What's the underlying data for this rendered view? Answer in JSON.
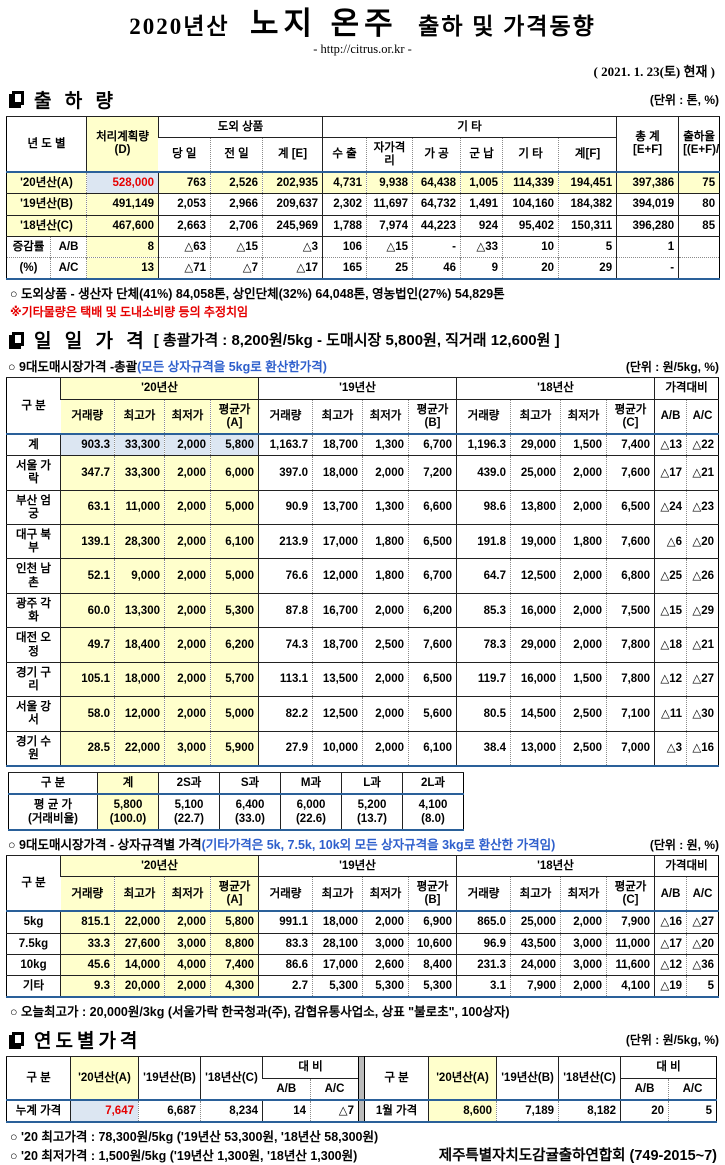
{
  "header": {
    "year_label": "2020년산",
    "title": "노지 온주",
    "subtitle": "출하 및 가격동향",
    "url": "- http://citrus.or.kr -",
    "date": "( 2021. 1. 23(토) 현재 )"
  },
  "shipment": {
    "title": "출 하 량",
    "unit": "(단위 : 톤, %)",
    "h": {
      "year": "년 도 별",
      "plan": "처리계획량\n(D)",
      "dowoe": "도외 상품",
      "day": "당 일",
      "prev": "전 일",
      "sumE": "계 [E]",
      "etc_group": "기            타",
      "exp": "수 출",
      "selfq": "자가격리",
      "proc": "가 공",
      "mil": "군 납",
      "etc": "기 타",
      "sumF": "계[F]",
      "total": "총  계\n[E+F]",
      "rate": "출하율\n[(E+F)/D]"
    },
    "rows": [
      {
        "cls": "cur",
        "c": [
          "'20년산(A)",
          "528,000",
          "763",
          "2,526",
          "202,935",
          "4,731",
          "9,938",
          "64,438",
          "1,005",
          "114,339",
          "194,451",
          "397,386",
          "75"
        ]
      },
      {
        "c": [
          "'19년산(B)",
          "491,149",
          "2,053",
          "2,966",
          "209,637",
          "2,302",
          "11,697",
          "64,732",
          "1,491",
          "104,160",
          "184,382",
          "394,019",
          "80"
        ]
      },
      {
        "c": [
          "'18년산(C)",
          "467,600",
          "2,663",
          "2,706",
          "245,969",
          "1,788",
          "7,974",
          "44,223",
          "924",
          "95,402",
          "150,311",
          "396,280",
          "85"
        ]
      }
    ],
    "chg_rows": [
      {
        "c": [
          "증감률",
          "A/B",
          "8",
          "△63",
          "△15",
          "△3",
          "106",
          "△15",
          "-",
          "△33",
          "10",
          "5",
          "1",
          ""
        ]
      },
      {
        "cls": "dot",
        "c": [
          "(%)",
          "A/C",
          "13",
          "△71",
          "△7",
          "△17",
          "165",
          "25",
          "46",
          "9",
          "20",
          "29",
          "-",
          ""
        ]
      }
    ],
    "note1": "○ 도외상품 - 생산자 단체(41%)  84,058톤,   상인단체(32%)  64,048톤,   영농법인(27%)  54,829톤",
    "note2": "※기타물량은 택배 및 도내소비량 등의 추정치임"
  },
  "price_header": {
    "gubun": "구   분",
    "y20": "'20년산",
    "y19": "'19년산",
    "y18": "'18년산",
    "cmp": "가격대비",
    "vol": "거래량",
    "high": "최고가",
    "low": "최저가",
    "avgA": "평균가(A]",
    "avgB": "평균가(B]",
    "avgC": "평균가(C]",
    "ab": "A/B",
    "ac": "A/C"
  },
  "daily": {
    "title": "일 일 가 격",
    "title_detail": "[ 총괄가격 : 8,200원/5kg  -  도매시장  5,800원,  직거래  12,600원 ]",
    "sub1": "○ 9대도매시장가격 -총괄",
    "sub1_paren": "(모든 상자규격을 5kg로 환산한가격)",
    "unit1": "(단위 : 원/5kg, %)",
    "rows": [
      {
        "cls": "tot",
        "c": [
          "계",
          "903.3",
          "33,300",
          "2,000",
          "5,800",
          "1,163.7",
          "18,700",
          "1,300",
          "6,700",
          "1,196.3",
          "29,000",
          "1,500",
          "7,400",
          "△13",
          "△22"
        ]
      },
      {
        "c": [
          "서울 가락",
          "347.7",
          "33,300",
          "2,000",
          "6,000",
          "397.0",
          "18,000",
          "2,000",
          "7,200",
          "439.0",
          "25,000",
          "2,000",
          "7,600",
          "△17",
          "△21"
        ]
      },
      {
        "c": [
          "부산 엄궁",
          "63.1",
          "11,000",
          "2,000",
          "5,000",
          "90.9",
          "13,700",
          "1,300",
          "6,600",
          "98.6",
          "13,800",
          "2,000",
          "6,500",
          "△24",
          "△23"
        ]
      },
      {
        "c": [
          "대구 북부",
          "139.1",
          "28,300",
          "2,000",
          "6,100",
          "213.9",
          "17,000",
          "1,800",
          "6,500",
          "191.8",
          "19,000",
          "1,800",
          "7,600",
          "△6",
          "△20"
        ]
      },
      {
        "c": [
          "인천 남촌",
          "52.1",
          "9,000",
          "2,000",
          "5,000",
          "76.6",
          "12,000",
          "1,800",
          "6,700",
          "64.7",
          "12,500",
          "2,000",
          "6,800",
          "△25",
          "△26"
        ]
      },
      {
        "c": [
          "광주 각화",
          "60.0",
          "13,300",
          "2,000",
          "5,300",
          "87.8",
          "16,700",
          "2,000",
          "6,200",
          "85.3",
          "16,000",
          "2,000",
          "7,500",
          "△15",
          "△29"
        ]
      },
      {
        "c": [
          "대전 오정",
          "49.7",
          "18,400",
          "2,000",
          "6,200",
          "74.3",
          "18,700",
          "2,500",
          "7,600",
          "78.3",
          "29,000",
          "2,000",
          "7,800",
          "△18",
          "△21"
        ]
      },
      {
        "c": [
          "경기 구리",
          "105.1",
          "18,000",
          "2,000",
          "5,700",
          "113.1",
          "13,500",
          "2,000",
          "6,500",
          "119.7",
          "16,000",
          "1,500",
          "7,800",
          "△12",
          "△27"
        ]
      },
      {
        "c": [
          "서울 강서",
          "58.0",
          "12,000",
          "2,000",
          "5,000",
          "82.2",
          "12,500",
          "2,000",
          "5,600",
          "80.5",
          "14,500",
          "2,500",
          "7,100",
          "△11",
          "△30"
        ]
      },
      {
        "c": [
          "경기 수원",
          "28.5",
          "22,000",
          "3,000",
          "5,900",
          "27.9",
          "10,000",
          "2,000",
          "6,100",
          "38.4",
          "13,000",
          "2,500",
          "7,000",
          "△3",
          "△16"
        ]
      }
    ],
    "size_table": {
      "h": [
        "구    분",
        "계",
        "2S과",
        "S과",
        "M과",
        "L과",
        "2L과"
      ],
      "rows": [
        {
          "c": [
            "평 균 가\n(거래비율)",
            "5,800\n(100.0)",
            "5,100\n(22.7)",
            "6,400\n(33.0)",
            "6,000\n(22.6)",
            "5,200\n(13.7)",
            "4,100\n(8.0)"
          ]
        }
      ]
    },
    "sub2": "○ 9대도매시장가격 - 상자규격별 가격",
    "sub2_paren": "(기타가격은 5k, 7.5k, 10k외 모든 상자규격을 3kg로 환산한 가격임)",
    "unit2": "(단위 : 원, %)",
    "box_rows": [
      {
        "c": [
          "5kg",
          "815.1",
          "22,000",
          "2,000",
          "5,800",
          "991.1",
          "18,000",
          "2,000",
          "6,900",
          "865.0",
          "25,000",
          "2,000",
          "7,900",
          "△16",
          "△27"
        ]
      },
      {
        "c": [
          "7.5kg",
          "33.3",
          "27,600",
          "3,000",
          "8,800",
          "83.3",
          "28,100",
          "3,000",
          "10,600",
          "96.9",
          "43,500",
          "3,000",
          "11,000",
          "△17",
          "△20"
        ]
      },
      {
        "c": [
          "10kg",
          "45.6",
          "14,000",
          "4,000",
          "7,400",
          "86.6",
          "17,000",
          "2,600",
          "8,400",
          "231.3",
          "24,000",
          "3,000",
          "11,600",
          "△12",
          "△36"
        ]
      },
      {
        "c": [
          "기타",
          "9.3",
          "20,000",
          "2,000",
          "4,300",
          "2.7",
          "5,300",
          "5,300",
          "5,300",
          "3.1",
          "7,900",
          "2,000",
          "4,100",
          "△19",
          "5"
        ]
      }
    ],
    "box_note": "○ 오늘최고가 :  20,000원/3kg (서울가락  한국청과(주),  감협유통사업소,  상표 \"불로초\",  100상자)"
  },
  "yearly": {
    "title": "연도별가격",
    "unit": "(단위 : 원/5kg, %)",
    "h": {
      "gubun": "구      분",
      "y20": "'20년산(A)",
      "y19": "'19년산(B)",
      "y18": "'18년산(C)",
      "daebi": "대      비",
      "ab": "A/B",
      "ac": "A/C"
    },
    "rows": [
      {
        "c": [
          "누계 가격",
          "7,647",
          "6,687",
          "8,234",
          "14",
          "△7",
          "",
          "1월 가격",
          "8,600",
          "7,189",
          "8,182",
          "20",
          "5"
        ]
      }
    ]
  },
  "footer": {
    "note1": "○ '20 최고가격 : 78,300원/5kg ('19년산 53,300원, '18년산 58,300원)",
    "note2": "○ '20 최저가격 :  1,500원/5kg ('19년산  1,300원, '18년산   1,300원)",
    "org": "제주특별자치도감귤출하연합회 (749-2015~7)"
  }
}
